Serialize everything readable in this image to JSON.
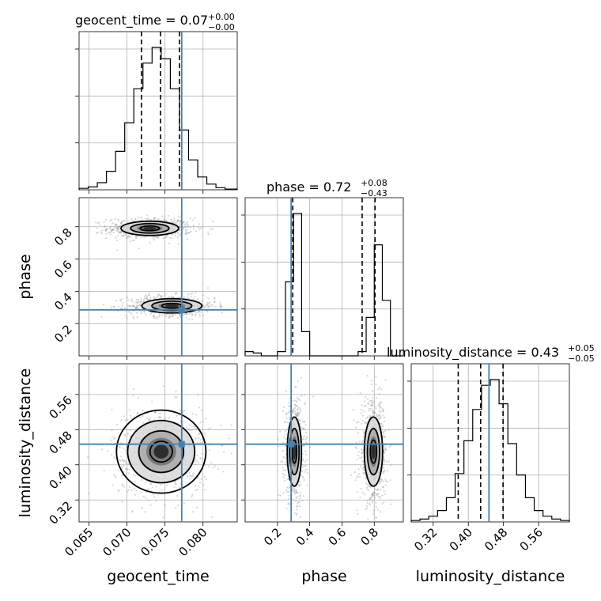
{
  "chart_data": {
    "type": "corner",
    "truth_color": "#4682b4",
    "hist_color": "#000000",
    "grid": true,
    "params": [
      {
        "name": "geocent_time",
        "xlabel": "geocent_time",
        "ticks": [
          "0.065",
          "0.070",
          "0.075",
          "0.080"
        ],
        "tick_values": [
          0.065,
          0.07,
          0.075,
          0.08
        ],
        "range": [
          0.0637,
          0.0845
        ],
        "truth": 0.0772
      },
      {
        "name": "phase",
        "xlabel": "phase",
        "ylabel": "phase",
        "ticks": [
          "0.2",
          "0.4",
          "0.6",
          "0.8"
        ],
        "tick_values": [
          0.2,
          0.4,
          0.6,
          0.8
        ],
        "range": [
          0.0,
          0.98
        ],
        "truth": 0.285
      },
      {
        "name": "luminosity_distance",
        "xlabel": "luminosity_distance",
        "ylabel": "luminosity_distance",
        "ticks": [
          "0.32",
          "0.40",
          "0.48",
          "0.56"
        ],
        "tick_values": [
          0.32,
          0.4,
          0.48,
          0.56
        ],
        "range": [
          0.27,
          0.63
        ],
        "truth": 0.447
      }
    ],
    "titles": [
      {
        "param": "geocent_time",
        "text": "geocent_time = 0.07",
        "sup": "+0.00",
        "sub": "−0.00"
      },
      {
        "param": "phase",
        "text": "phase = 0.72",
        "sup": "+0.08",
        "sub": "−0.43"
      },
      {
        "param": "luminosity_distance",
        "text": "luminosity_distance = 0.43",
        "sup": "+0.05",
        "sub": "−0.05"
      }
    ],
    "histograms": [
      {
        "param": "geocent_time",
        "bin_edges": [
          0.0637,
          0.0649,
          0.0661,
          0.0673,
          0.0685,
          0.0697,
          0.0709,
          0.0721,
          0.0733,
          0.0745,
          0.0757,
          0.0769,
          0.0781,
          0.0793,
          0.0805,
          0.0817,
          0.0829,
          0.0845
        ],
        "counts": [
          0.01,
          0.02,
          0.05,
          0.13,
          0.27,
          0.47,
          0.71,
          0.89,
          1.0,
          0.92,
          0.71,
          0.42,
          0.21,
          0.09,
          0.04,
          0.015,
          0.005
        ],
        "quantiles": [
          0.0719,
          0.0744,
          0.0769
        ]
      },
      {
        "param": "phase",
        "bin_edges": [
          0.0,
          0.05,
          0.1,
          0.15,
          0.2,
          0.25,
          0.3,
          0.35,
          0.4,
          0.45,
          0.5,
          0.55,
          0.6,
          0.65,
          0.7,
          0.75,
          0.8,
          0.85,
          0.9,
          0.95,
          0.98
        ],
        "counts": [
          0.03,
          0.02,
          0.0,
          0.0,
          0.03,
          0.52,
          1.0,
          0.17,
          0.0,
          0.0,
          0.0,
          0.0,
          0.0,
          0.0,
          0.03,
          0.27,
          0.78,
          0.39,
          0.0,
          0.0
        ],
        "quantiles": [
          0.295,
          0.725,
          0.805
        ]
      },
      {
        "param": "luminosity_distance",
        "bin_edges": [
          0.27,
          0.29,
          0.31,
          0.33,
          0.35,
          0.37,
          0.39,
          0.41,
          0.43,
          0.45,
          0.47,
          0.49,
          0.51,
          0.53,
          0.55,
          0.57,
          0.59,
          0.61,
          0.63
        ],
        "counts": [
          0.01,
          0.02,
          0.04,
          0.08,
          0.17,
          0.34,
          0.57,
          0.79,
          0.96,
          1.0,
          0.83,
          0.55,
          0.33,
          0.17,
          0.08,
          0.04,
          0.02,
          0.01
        ],
        "quantiles": [
          0.377,
          0.428,
          0.479
        ]
      }
    ],
    "joint": [
      {
        "x": "geocent_time",
        "y": "phase",
        "modes": [
          {
            "cx": 0.073,
            "cy": 0.79,
            "sx": 0.0024,
            "sy": 0.028,
            "levels": [
              0.5,
              1.0,
              1.5
            ]
          },
          {
            "cx": 0.0759,
            "cy": 0.31,
            "sx": 0.0025,
            "sy": 0.028,
            "levels": [
              0.5,
              1.0,
              1.5
            ]
          }
        ]
      },
      {
        "x": "geocent_time",
        "y": "luminosity_distance",
        "modes": [
          {
            "cx": 0.0745,
            "cy": 0.43,
            "sx": 0.0028,
            "sy": 0.045,
            "levels": [
              0.5,
              1.0,
              1.5,
              2.0
            ]
          }
        ]
      },
      {
        "x": "phase",
        "y": "luminosity_distance",
        "modes": [
          {
            "cx": 0.305,
            "cy": 0.43,
            "sx": 0.028,
            "sy": 0.05,
            "levels": [
              0.5,
              1.0,
              1.5
            ]
          },
          {
            "cx": 0.795,
            "cy": 0.43,
            "sx": 0.036,
            "sy": 0.05,
            "levels": [
              0.5,
              1.0,
              1.5
            ]
          }
        ]
      }
    ]
  }
}
